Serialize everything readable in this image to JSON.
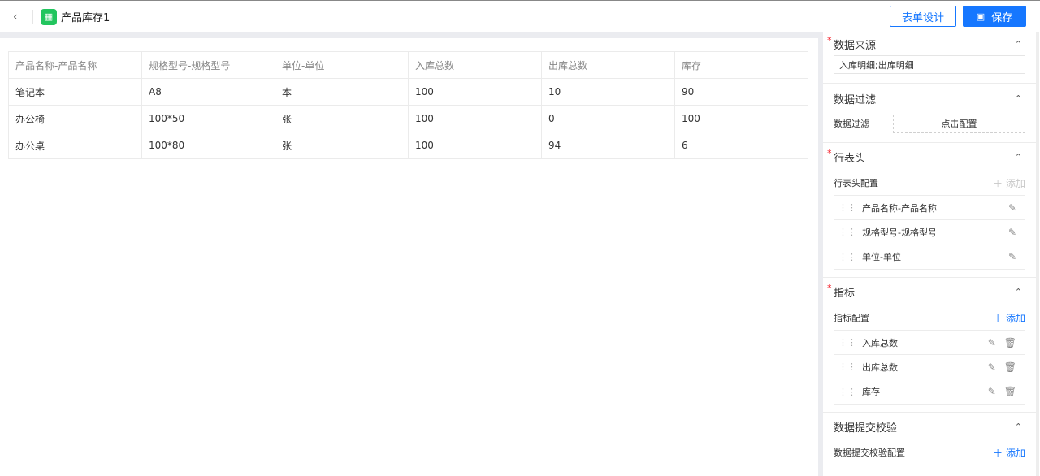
{
  "header": {
    "title": "产品库存1",
    "design_label": "表单设计",
    "save_label": "保存"
  },
  "table": {
    "columns": [
      "产品名称-产品名称",
      "规格型号-规格型号",
      "单位-单位",
      "入库总数",
      "出库总数",
      "库存"
    ],
    "rows": [
      [
        "笔记本",
        "A8",
        "本",
        "100",
        "10",
        "90"
      ],
      [
        "办公椅",
        "100*50",
        "张",
        "100",
        "0",
        "100"
      ],
      [
        "办公桌",
        "100*80",
        "张",
        "100",
        "94",
        "6"
      ]
    ]
  },
  "panel": {
    "source": {
      "title": "数据来源",
      "value": "入库明细;出库明细"
    },
    "filter": {
      "title": "数据过滤",
      "label": "数据过滤",
      "button": "点击配置"
    },
    "rowhead": {
      "title": "行表头",
      "config_label": "行表头配置",
      "add": "添加",
      "items": [
        "产品名称-产品名称",
        "规格型号-规格型号",
        "单位-单位"
      ]
    },
    "metric": {
      "title": "指标",
      "config_label": "指标配置",
      "add": "添加",
      "items": [
        "入库总数",
        "出库总数",
        "库存"
      ]
    },
    "validate": {
      "title": "数据提交校验",
      "config_label": "数据提交校验配置",
      "add": "添加"
    }
  },
  "colors": {
    "accent": "#1677ff",
    "app_icon": "#22c55e",
    "required": "#f5222d"
  }
}
